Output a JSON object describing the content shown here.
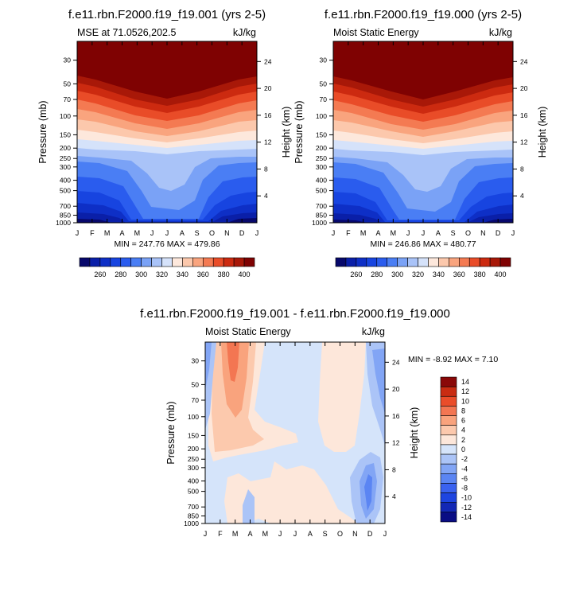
{
  "chart_data": [
    {
      "type": "heatmap",
      "title": "f.e11.rbn.F2000.f19_f19.001 (yrs 2-5)",
      "left_label": "MSE at 71.0526,202.5",
      "units": "kJ/kg",
      "ylabel": "Pressure (mb)",
      "y2label": "Height (km)",
      "x_ticks": [
        "J",
        "F",
        "M",
        "A",
        "M",
        "J",
        "J",
        "A",
        "S",
        "O",
        "N",
        "D",
        "J"
      ],
      "p_ticks": [
        "30",
        "50",
        "70",
        "100",
        "150",
        "200",
        "250",
        "300",
        "400",
        "500",
        "700",
        "850",
        "1000"
      ],
      "h_ticks": [
        "24",
        "20",
        "16",
        "12",
        "8",
        "4"
      ],
      "min_max": "MIN = 247.76 MAX = 479.86",
      "min": 247.76,
      "max": 479.86,
      "levels": [
        250,
        260,
        270,
        280,
        290,
        300,
        310,
        320,
        330,
        340,
        350,
        360,
        370,
        380,
        390,
        400
      ],
      "colorbar_labels": [
        "260",
        "280",
        "300",
        "320",
        "340",
        "360",
        "380",
        "400"
      ]
    },
    {
      "type": "heatmap",
      "title": "f.e11.rbn.F2000.f19_f19.000 (yrs 2-5)",
      "left_label": "Moist Static Energy",
      "units": "kJ/kg",
      "ylabel": "Pressure (mb)",
      "y2label": "Height (km)",
      "x_ticks": [
        "J",
        "F",
        "M",
        "A",
        "M",
        "J",
        "J",
        "A",
        "S",
        "O",
        "N",
        "D",
        "J"
      ],
      "p_ticks": [
        "30",
        "50",
        "70",
        "100",
        "150",
        "200",
        "250",
        "300",
        "400",
        "500",
        "700",
        "850",
        "1000"
      ],
      "h_ticks": [
        "24",
        "20",
        "16",
        "12",
        "8",
        "4"
      ],
      "min_max": "MIN = 246.86 MAX = 480.77",
      "min": 246.86,
      "max": 480.77,
      "levels": [
        250,
        260,
        270,
        280,
        290,
        300,
        310,
        320,
        330,
        340,
        350,
        360,
        370,
        380,
        390,
        400
      ],
      "colorbar_labels": [
        "260",
        "280",
        "300",
        "320",
        "340",
        "360",
        "380",
        "400"
      ]
    },
    {
      "type": "heatmap",
      "title": "f.e11.rbn.F2000.f19_f19.001 - f.e11.rbn.F2000.f19_f19.000",
      "left_label": "Moist Static Energy",
      "units": "kJ/kg",
      "ylabel": "Pressure (mb)",
      "y2label": "Height (km)",
      "x_ticks": [
        "J",
        "F",
        "M",
        "A",
        "M",
        "J",
        "J",
        "A",
        "S",
        "O",
        "N",
        "D",
        "J"
      ],
      "p_ticks": [
        "30",
        "50",
        "70",
        "100",
        "150",
        "200",
        "250",
        "300",
        "400",
        "500",
        "700",
        "850",
        "1000"
      ],
      "h_ticks": [
        "24",
        "20",
        "16",
        "12",
        "8",
        "4"
      ],
      "min_max": "MIN =  -8.92 MAX =   7.10",
      "min": -8.92,
      "max": 7.1,
      "levels": [
        -14,
        -12,
        -10,
        -8,
        -6,
        -4,
        -2,
        0,
        2,
        4,
        6,
        8,
        10,
        12,
        14
      ],
      "colorbar_labels": [
        "14",
        "12",
        "10",
        "8",
        "6",
        "4",
        "2",
        "0",
        "-2",
        "-4",
        "-6",
        "-8",
        "-10",
        "-12",
        "-14"
      ]
    }
  ],
  "colors": {
    "main_palette": [
      "#07086b",
      "#0a1fa8",
      "#0e2fc6",
      "#1744e0",
      "#2a5cee",
      "#4a7ef4",
      "#7aa2f6",
      "#a9c3f8",
      "#d5e2fa",
      "#fde8dc",
      "#fcc8ac",
      "#f9a47e",
      "#f47a52",
      "#e94c28",
      "#cc2a10",
      "#a81808",
      "#7f0202"
    ],
    "diff_palette": [
      "#0a0d84",
      "#1328b5",
      "#1e45e0",
      "#3a62f0",
      "#5b85f3",
      "#82a5f5",
      "#abc4f7",
      "#d5e4fa",
      "#fde7da",
      "#fcc9ad",
      "#f9a37d",
      "#f37652",
      "#ea4d2a",
      "#c92c12",
      "#8a0808"
    ]
  }
}
